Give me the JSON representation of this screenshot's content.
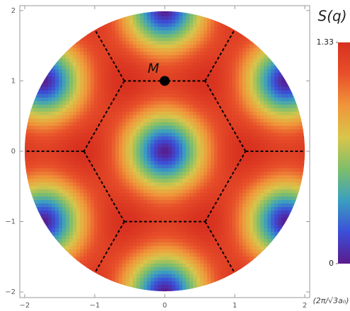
{
  "chart_data": {
    "type": "density",
    "xlim": [
      -2.07,
      2.07
    ],
    "ylim": [
      -2.08,
      2.07
    ],
    "xticks": [
      {
        "value": -2,
        "label": "−2"
      },
      {
        "value": -1,
        "label": "−1"
      },
      0,
      1,
      2
    ],
    "yticks": [
      {
        "value": -2,
        "label": "−2"
      },
      {
        "value": -1,
        "label": "−1"
      },
      0,
      1,
      2
    ],
    "x_unit": "(2π/√3a₀)",
    "colorbar_title": "S(q)",
    "zlim": [
      0,
      1.33
    ],
    "zticks": [
      0,
      1.33
    ],
    "colormap": [
      "#5b1a8c",
      "#3b4fd8",
      "#3a9fc0",
      "#7fbf6a",
      "#d9c54a",
      "#f0963a",
      "#e8502a",
      "#d7301f"
    ],
    "points": [
      {
        "label": "M",
        "x": 0,
        "y": 1,
        "color": "#000000"
      }
    ]
  }
}
